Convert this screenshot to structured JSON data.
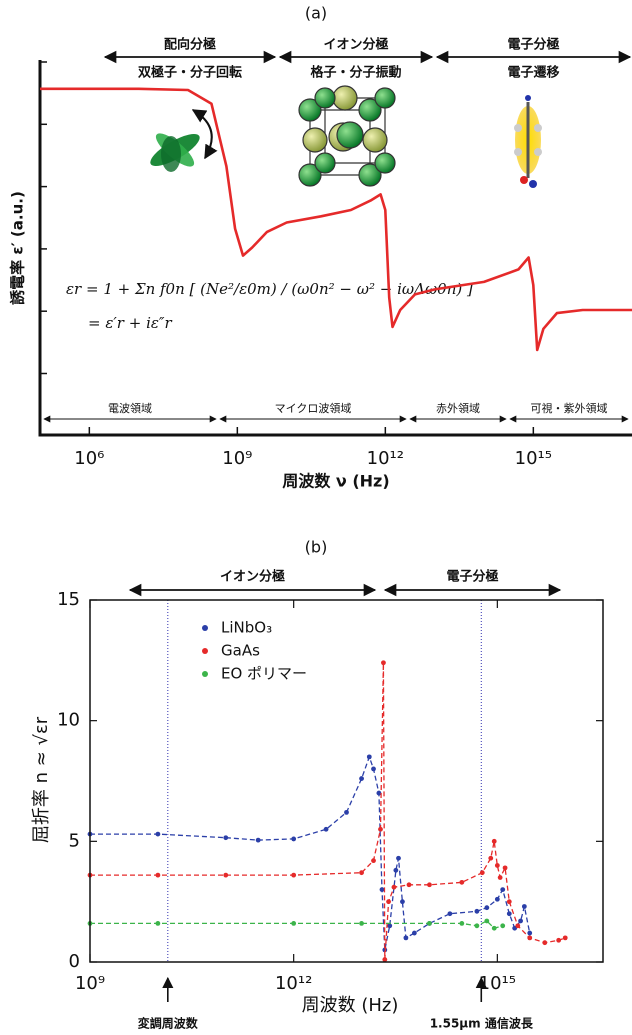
{
  "chart_data": [
    {
      "label": "(a)",
      "type": "line",
      "xlabel": "周波数 ν (Hz)",
      "ylabel": "誘電率 ε′ (a.u.)",
      "xscale": "log",
      "xlim": [
        100000.0,
        1e+17
      ],
      "xticks": [
        {
          "value": 1000000.0,
          "label": "10⁶"
        },
        {
          "value": 1000000000.0,
          "label": "10⁹"
        },
        {
          "value": 1000000000000.0,
          "label": "10¹²"
        },
        {
          "value": 1000000000000000.0,
          "label": "10¹⁵"
        }
      ],
      "ylim": [
        0,
        6
      ],
      "polarization": [
        {
          "name": "配向分極",
          "mechanism": "双極子・分子回転"
        },
        {
          "name": "イオン分極",
          "mechanism": "格子・分子振動"
        },
        {
          "name": "電子分極",
          "mechanism": "電子遷移"
        }
      ],
      "regions": [
        "電波領域",
        "マイクロ波領域",
        "赤外領域",
        "可視・紫外領域"
      ],
      "equation": [
        "εr = 1 + Σn f0n [ (Ne²/ε0m) / (ω0n² − ω² − iωΔω0n) ]",
        "= ε′r + iε″r"
      ],
      "series": [
        {
          "color": "#e52a2a",
          "x": [
            100000.0,
            10000000.0,
            100000000.0,
            300000000.0,
            600000000.0,
            900000000.0,
            1300000000.0,
            2000000000.0,
            4000000000.0,
            10000000000.0,
            50000000000.0,
            200000000000.0,
            500000000000.0,
            800000000000.0,
            1000000000000.0,
            1200000000000.0,
            1400000000000.0,
            2000000000000.0,
            4000000000000.0,
            10000000000000.0,
            100000000000000.0,
            500000000000000.0,
            800000000000000.0,
            1000000000000000.0,
            1200000000000000.0,
            1600000000000000.0,
            3000000000000000.0,
            1e+16,
            1e+17
          ],
          "values": [
            5.54,
            5.54,
            5.52,
            5.3,
            4.3,
            3.3,
            2.87,
            3.0,
            3.25,
            3.4,
            3.5,
            3.6,
            3.75,
            3.85,
            3.6,
            2.2,
            1.73,
            2.0,
            2.25,
            2.33,
            2.45,
            2.65,
            2.84,
            2.4,
            1.36,
            1.7,
            1.95,
            2.0,
            2.0
          ]
        }
      ]
    },
    {
      "label": "(b)",
      "type": "line",
      "xlabel": "周波数 (Hz)",
      "ylabel": "屈折率 n ≈ √εr",
      "xscale": "log",
      "xlim": [
        1000000000.0,
        3.6e+16
      ],
      "xticks": [
        {
          "value": 1000000000.0,
          "label": "10⁹"
        },
        {
          "value": 1000000000000.0,
          "label": "10¹²"
        },
        {
          "value": 1000000000000000.0,
          "label": "10¹⁵"
        }
      ],
      "ylim": [
        0,
        15
      ],
      "yticks": [
        0,
        5,
        10,
        15
      ],
      "legend": "upper left",
      "polarization": [
        "イオン分極",
        "電子分極"
      ],
      "vlines": [
        {
          "x": 14000000000.0,
          "label": "変調周波数"
        },
        {
          "x": 580000000000000.0,
          "label": "1.55μm 通信波長"
        }
      ],
      "series": [
        {
          "name": "LiNbO₃",
          "color": "#2b3fa8",
          "x": [
            1000000000.0,
            10000000000.0,
            100000000000.0,
            300000000000.0,
            1000000000000.0,
            3000000000000.0,
            6000000000000.0,
            10000000000000.0,
            13000000000000.0,
            15000000000000.0,
            18000000000000.0,
            20000000000000.0,
            22000000000000.0,
            26000000000000.0,
            32000000000000.0,
            35000000000000.0,
            40000000000000.0,
            45000000000000.0,
            60000000000000.0,
            100000000000000.0,
            200000000000000.0,
            500000000000000.0,
            700000000000000.0,
            1000000000000000.0,
            1200000000000000.0,
            1500000000000000.0,
            1800000000000000.0,
            2200000000000000.0,
            2500000000000000.0,
            3000000000000000.0
          ],
          "values": [
            5.3,
            5.3,
            5.15,
            5.05,
            5.1,
            5.5,
            6.2,
            7.6,
            8.5,
            8.0,
            7.0,
            3.0,
            0.5,
            1.5,
            3.8,
            4.3,
            2.5,
            1.0,
            1.2,
            1.6,
            2.0,
            2.1,
            2.25,
            2.6,
            3.0,
            2.0,
            1.4,
            1.7,
            2.3,
            1.2
          ]
        },
        {
          "name": "GaAs",
          "color": "#e52a2a",
          "x": [
            1000000000.0,
            10000000000.0,
            100000000000.0,
            1000000000000.0,
            10000000000000.0,
            15000000000000.0,
            19000000000000.0,
            21000000000000.0,
            22000000000000.0,
            25000000000000.0,
            30000000000000.0,
            50000000000000.0,
            100000000000000.0,
            300000000000000.0,
            600000000000000.0,
            800000000000000.0,
            900000000000000.0,
            1000000000000000.0,
            1100000000000000.0,
            1300000000000000.0,
            1500000000000000.0,
            2000000000000000.0,
            3000000000000000.0,
            5000000000000000.0,
            8000000000000000.0,
            1e+16
          ],
          "values": [
            3.6,
            3.6,
            3.6,
            3.6,
            3.7,
            4.2,
            5.5,
            12.4,
            0.1,
            2.5,
            3.1,
            3.2,
            3.2,
            3.3,
            3.7,
            4.3,
            5.0,
            4.0,
            3.5,
            3.9,
            2.5,
            1.5,
            1.0,
            0.8,
            0.9,
            1.0
          ]
        },
        {
          "name": "EO ポリマー",
          "color": "#3cb44a",
          "x": [
            1000000000.0,
            10000000000.0,
            1000000000000.0,
            10000000000000.0,
            100000000000000.0,
            300000000000000.0,
            500000000000000.0,
            700000000000000.0,
            900000000000000.0,
            1200000000000000.0
          ],
          "values": [
            1.6,
            1.6,
            1.6,
            1.6,
            1.6,
            1.6,
            1.5,
            1.7,
            1.4,
            1.5
          ]
        }
      ]
    }
  ]
}
